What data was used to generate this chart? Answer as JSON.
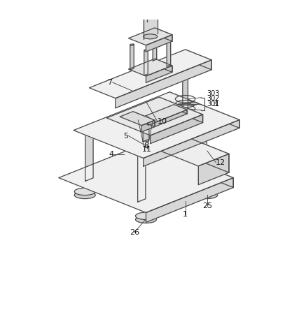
{
  "figure_width": 4.17,
  "figure_height": 4.44,
  "dpi": 100,
  "background_color": "#ffffff",
  "lc": "#484848",
  "lw": 0.9,
  "fs": 8.0,
  "gray_top": "#f0f0f0",
  "gray_front": "#d8d8d8",
  "gray_right": "#c0c0c0",
  "gray_col": "#d4d4d4"
}
